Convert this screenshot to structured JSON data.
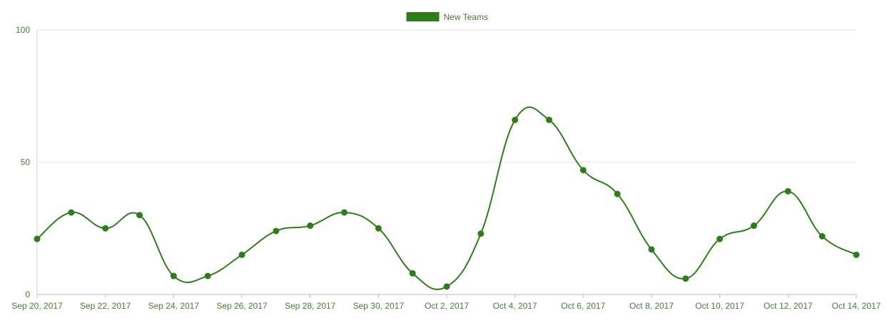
{
  "chart_data": {
    "type": "line",
    "title": "",
    "xlabel": "",
    "ylabel": "",
    "legend": {
      "position": "top",
      "entries": [
        "New Teams"
      ]
    },
    "series": [
      {
        "name": "New Teams",
        "color": "#2e7d1a",
        "values": [
          21,
          31,
          25,
          30,
          7,
          7,
          15,
          24,
          26,
          31,
          25,
          8,
          3,
          23,
          66,
          66,
          47,
          38,
          17,
          6,
          21,
          26,
          39,
          22,
          15
        ]
      }
    ],
    "x": [
      "Sep 20, 2017",
      "Sep 21, 2017",
      "Sep 22, 2017",
      "Sep 23, 2017",
      "Sep 24, 2017",
      "Sep 25, 2017",
      "Sep 26, 2017",
      "Sep 27, 2017",
      "Sep 28, 2017",
      "Sep 29, 2017",
      "Sep 30, 2017",
      "Oct 1, 2017",
      "Oct 2, 2017",
      "Oct 3, 2017",
      "Oct 4, 2017",
      "Oct 5, 2017",
      "Oct 6, 2017",
      "Oct 7, 2017",
      "Oct 8, 2017",
      "Oct 9, 2017",
      "Oct 10, 2017",
      "Oct 11, 2017",
      "Oct 12, 2017",
      "Oct 13, 2017",
      "Oct 14, 2017"
    ],
    "x_tick_labels": [
      "Sep 20, 2017",
      "Sep 22, 2017",
      "Sep 24, 2017",
      "Sep 26, 2017",
      "Sep 28, 2017",
      "Sep 30, 2017",
      "Oct 2, 2017",
      "Oct 4, 2017",
      "Oct 6, 2017",
      "Oct 8, 2017",
      "Oct 10, 2017",
      "Oct 12, 2017",
      "Oct 14, 2017"
    ],
    "y_ticks": [
      0,
      50,
      100
    ],
    "ylim": [
      0,
      100
    ],
    "grid": true
  }
}
